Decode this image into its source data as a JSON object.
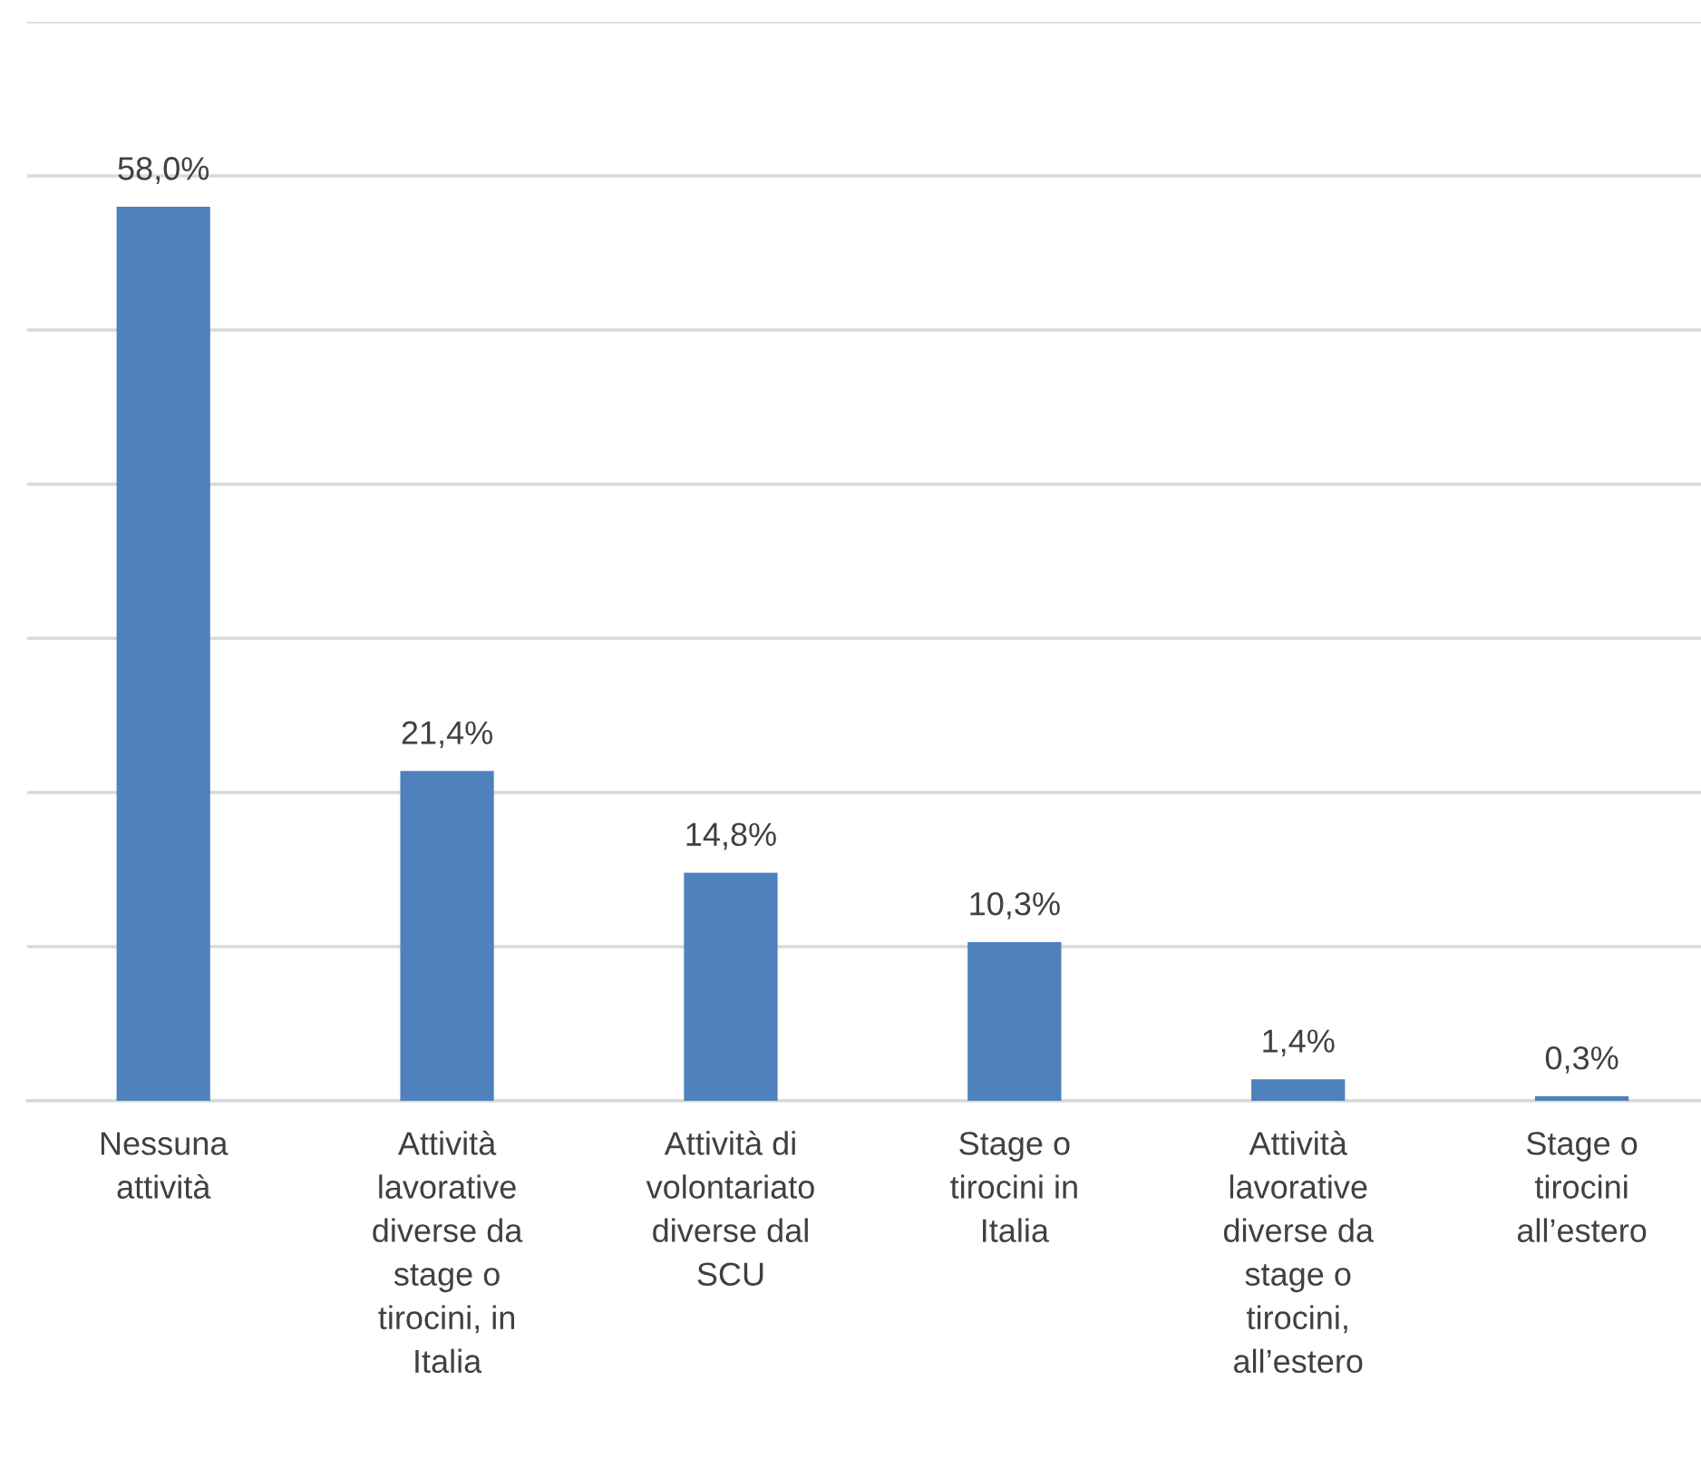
{
  "chart_data": {
    "type": "bar",
    "categories": [
      "Nessuna attività",
      "Attività lavorative diverse da stage o tirocini, in Italia",
      "Attività di volontariato diverse dal SCU",
      "Stage o tirocini in Italia",
      "Attività lavorative diverse da stage o tirocini, all’estero",
      "Stage o tirocini all’estero"
    ],
    "values": [
      58.0,
      21.4,
      14.8,
      10.3,
      1.4,
      0.3
    ],
    "value_labels": [
      "58,0%",
      "21,4%",
      "14,8%",
      "10,3%",
      "1,4%",
      "0,3%"
    ],
    "color": "#4f81bd",
    "ylim": [
      0,
      70
    ],
    "yticks": [
      {
        "value": 0,
        "label": null
      },
      {
        "value": 10,
        "label": null
      },
      {
        "value": 20,
        "label": null
      },
      {
        "value": 30,
        "label": null
      },
      {
        "value": 40,
        "label": null
      },
      {
        "value": 50,
        "label": null
      },
      {
        "value": 60,
        "label": null
      },
      {
        "value": 70,
        "label": null
      }
    ],
    "grid": "y"
  }
}
